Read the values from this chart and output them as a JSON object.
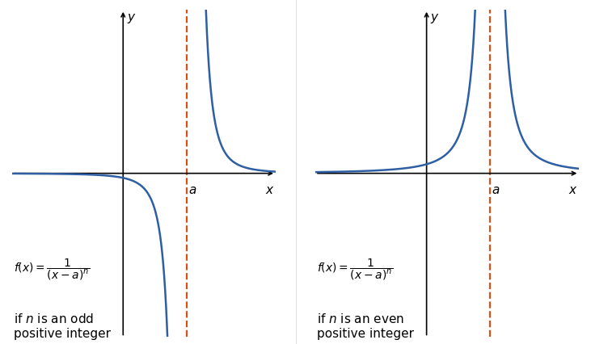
{
  "fig_width": 7.31,
  "fig_height": 4.27,
  "dpi": 100,
  "bg_color": "#ffffff",
  "curve_color": "#2e5fa3",
  "curve_linewidth": 1.8,
  "asymptote_color": "#d4521a",
  "asymptote_linewidth": 1.6,
  "asymptote_linestyle": "--",
  "axis_color": "#000000",
  "axis_linewidth": 1.2,
  "arrow_size": 8,
  "a_value": 2.0,
  "xlim": [
    -3.5,
    4.8
  ],
  "ylim": [
    -4.5,
    4.5
  ],
  "n_odd": 3,
  "n_even": 2,
  "label_odd": "if $n$ is an odd\npositive integer",
  "label_even": "if $n$ is an even\npositive integer",
  "text_color": "#000000",
  "font_size_formula": 10,
  "font_size_label": 11,
  "font_size_axis_label": 11,
  "y_label": "$y$",
  "x_label": "$x$",
  "a_label": "$a$"
}
